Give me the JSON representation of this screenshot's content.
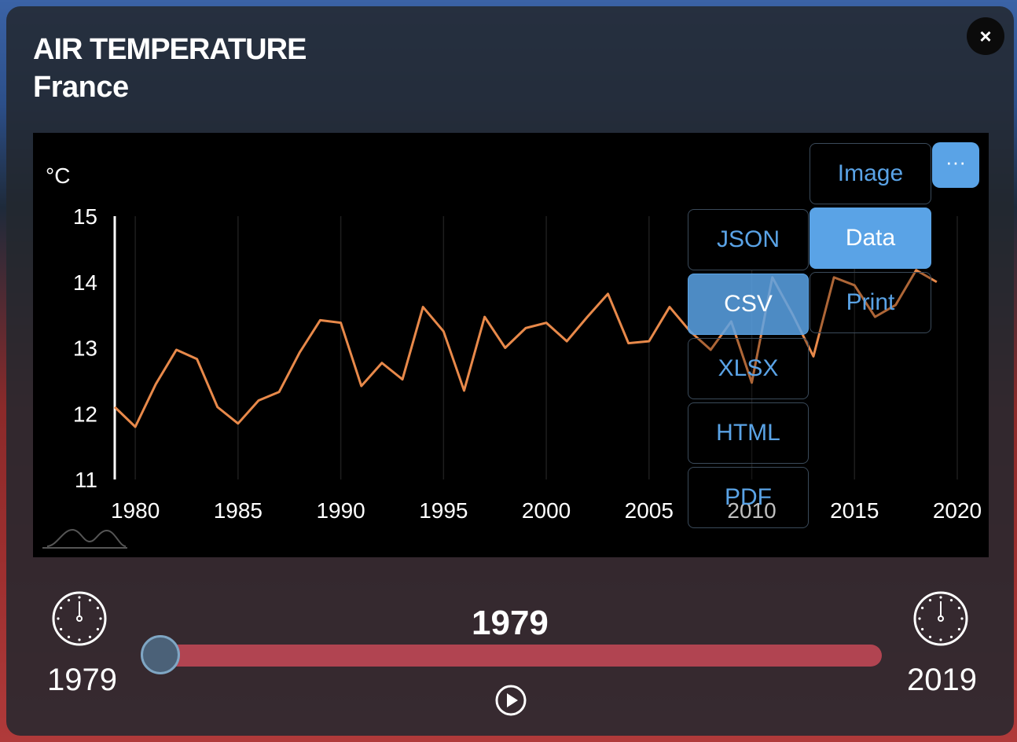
{
  "panel": {
    "title": "AIR TEMPERATURE",
    "subtitle": "France",
    "close_label": "×"
  },
  "menu": {
    "dots_label": "···",
    "items": [
      "Image",
      "Data",
      "Print"
    ],
    "data_items": [
      "JSON",
      "CSV",
      "XLSX",
      "HTML",
      "PDF"
    ]
  },
  "timeline": {
    "start_year": "1979",
    "end_year": "2019",
    "current_year": "1979",
    "position": 0
  },
  "colors": {
    "line": "#e8894a",
    "accent": "#5aa3e6",
    "slider": "#b14451"
  },
  "chart_data": {
    "type": "line",
    "ylabel": "°C",
    "xlim": [
      1979,
      2020
    ],
    "ylim": [
      11,
      15
    ],
    "xticks": [
      1980,
      1985,
      1990,
      1995,
      2000,
      2005,
      2010,
      2015,
      2020
    ],
    "yticks": [
      11,
      12,
      13,
      14,
      15
    ],
    "grid": "vertical",
    "series": [
      {
        "x": [
          1979,
          1980,
          1981,
          1982,
          1983,
          1984,
          1985,
          1986,
          1987,
          1988,
          1989,
          1990,
          1991,
          1992,
          1993,
          1994,
          1995,
          1996,
          1997,
          1998,
          1999,
          2000,
          2001,
          2002,
          2003,
          2004,
          2005,
          2006,
          2007,
          2008,
          2009,
          2010,
          2011,
          2012,
          2013,
          2014,
          2015,
          2016,
          2017,
          2018,
          2019
        ],
        "values": [
          12.1,
          11.8,
          12.45,
          12.97,
          12.83,
          12.1,
          11.85,
          12.2,
          12.33,
          12.93,
          13.42,
          13.38,
          12.42,
          12.77,
          12.52,
          13.62,
          13.25,
          12.35,
          13.47,
          13.0,
          13.3,
          13.38,
          13.1,
          13.47,
          13.82,
          13.07,
          13.1,
          13.62,
          13.25,
          12.97,
          13.4,
          12.47,
          14.07,
          13.5,
          12.87,
          14.07,
          13.95,
          13.47,
          13.65,
          14.18,
          14.0
        ]
      }
    ]
  }
}
